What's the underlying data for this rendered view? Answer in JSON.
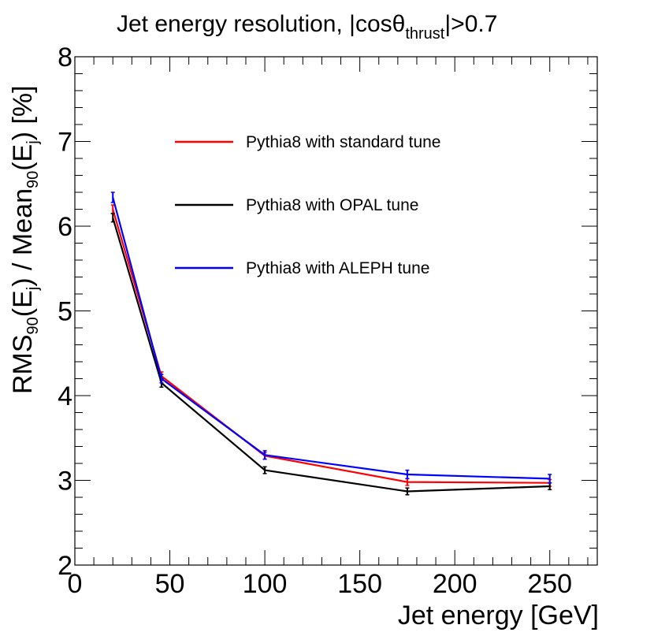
{
  "chart_data": {
    "type": "line",
    "title": {
      "pre": "Jet energy resolution, |cos",
      "theta": "θ",
      "sub": "thrust",
      "post": "|>0.7"
    },
    "xlabel": "Jet energy [GeV]",
    "ylabel": {
      "a": "RMS",
      "a_sub": "90",
      "b": "(E",
      "b_sub": "j",
      "c": ") / Mean",
      "c_sub": "90",
      "d": "(E",
      "d_sub": "j",
      "e": ") [%]"
    },
    "xlim": [
      0,
      275
    ],
    "ylim": [
      2,
      8
    ],
    "x_ticks": [
      0,
      50,
      100,
      150,
      200,
      250
    ],
    "x_tick_labels": [
      "0",
      "50",
      "100",
      "150",
      "200",
      "250"
    ],
    "y_ticks": [
      2,
      3,
      4,
      5,
      6,
      7,
      8
    ],
    "y_tick_labels": [
      "2",
      "3",
      "4",
      "5",
      "6",
      "7",
      "8"
    ],
    "x": [
      20,
      45.6,
      100,
      175,
      250
    ],
    "series": [
      {
        "name": "Pythia8 with standard tune",
        "color": "#ff0000",
        "values": [
          6.2,
          4.23,
          3.29,
          2.98,
          2.97
        ],
        "errors": [
          0.05,
          0.05,
          0.04,
          0.04,
          0.04
        ]
      },
      {
        "name": "Pythia8 with OPAL tune",
        "color": "#000000",
        "values": [
          6.1,
          4.15,
          3.12,
          2.87,
          2.93
        ],
        "errors": [
          0.05,
          0.05,
          0.04,
          0.04,
          0.04
        ]
      },
      {
        "name": "Pythia8 with ALEPH tune",
        "color": "#0000ff",
        "values": [
          6.34,
          4.2,
          3.3,
          3.07,
          3.02
        ],
        "errors": [
          0.06,
          0.05,
          0.05,
          0.05,
          0.05
        ]
      }
    ],
    "legend_position": "top-right",
    "grid": false
  }
}
